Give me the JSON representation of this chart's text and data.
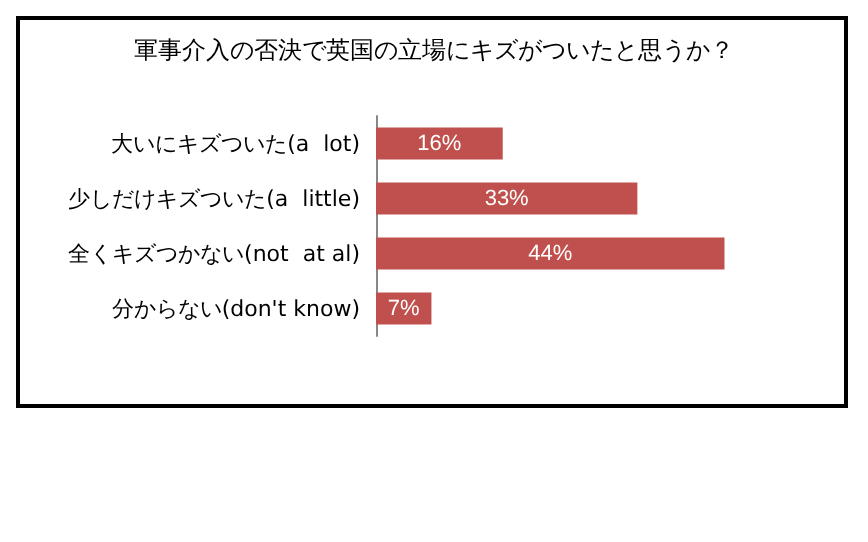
{
  "chart_data": {
    "type": "bar",
    "orientation": "horizontal",
    "title": "軍事介入の否決で英国の立場にキズがついたと思うか？",
    "categories": [
      "大いにキズついた(a  lot)",
      "少しだけキズついた(a  little)",
      "全くキズつかない(not  at al)",
      "分からない(don't know)"
    ],
    "values": [
      16,
      33,
      44,
      7
    ],
    "color": "#c0504d",
    "data_labels": true,
    "value_labels": [
      "16%",
      "33%",
      "44%",
      "7%"
    ]
  }
}
